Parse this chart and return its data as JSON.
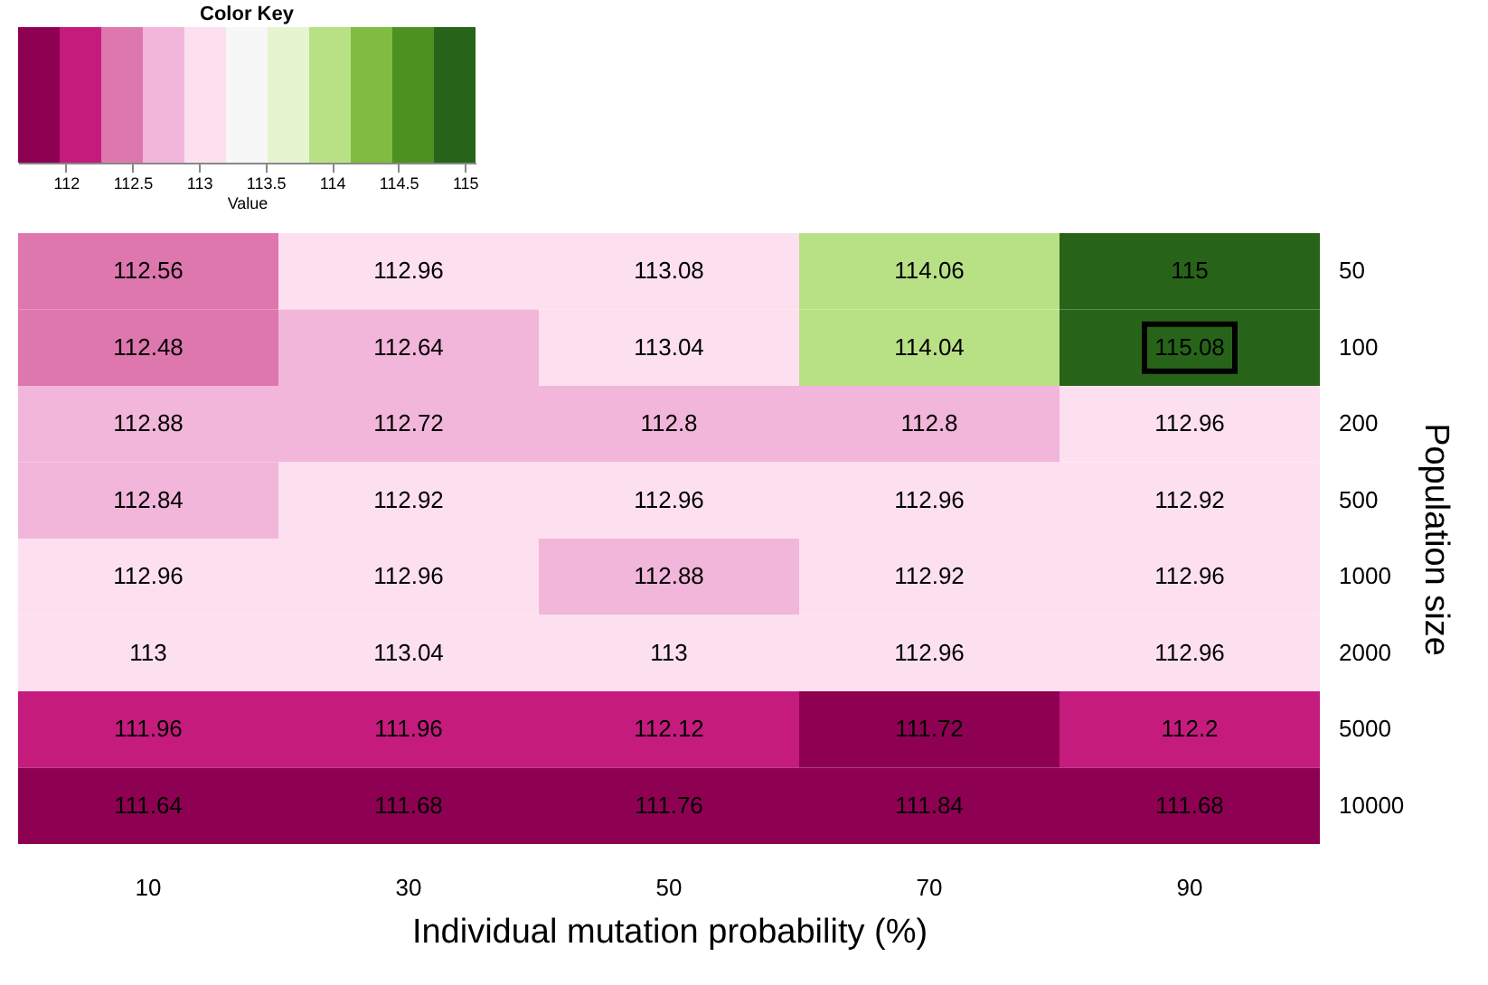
{
  "chart_data": {
    "type": "heatmap",
    "categories": [
      "10",
      "30",
      "50",
      "70",
      "90"
    ],
    "y_categories": [
      "50",
      "100",
      "200",
      "500",
      "1000",
      "2000",
      "5000",
      "10000"
    ],
    "cells": [
      [
        112.56,
        112.96,
        113.08,
        114.06,
        115
      ],
      [
        112.48,
        112.64,
        113.04,
        114.04,
        115.08
      ],
      [
        112.88,
        112.72,
        112.8,
        112.8,
        112.96
      ],
      [
        112.84,
        112.92,
        112.96,
        112.96,
        112.92
      ],
      [
        112.96,
        112.96,
        112.88,
        112.92,
        112.96
      ],
      [
        113,
        113.04,
        113,
        112.96,
        112.96
      ],
      [
        111.96,
        111.96,
        112.12,
        111.72,
        112.2
      ],
      [
        111.64,
        111.68,
        111.76,
        111.84,
        111.68
      ]
    ],
    "data_labels": true,
    "xlabel": "Individual mutation probability (%)",
    "ylabel": "Population size",
    "legend_title": "Color Key",
    "clabel": "Value",
    "clim": [
      111.64,
      115.08
    ],
    "cticks": [
      112,
      112.5,
      113,
      113.5,
      114,
      114.5,
      115
    ],
    "colors": [
      "#8e0152",
      "#c51b7d",
      "#de77ae",
      "#f1b6da",
      "#fde0ef",
      "#f7f7f7",
      "#e6f5d0",
      "#b8e186",
      "#7fbc41",
      "#4d9221",
      "#276419"
    ]
  }
}
